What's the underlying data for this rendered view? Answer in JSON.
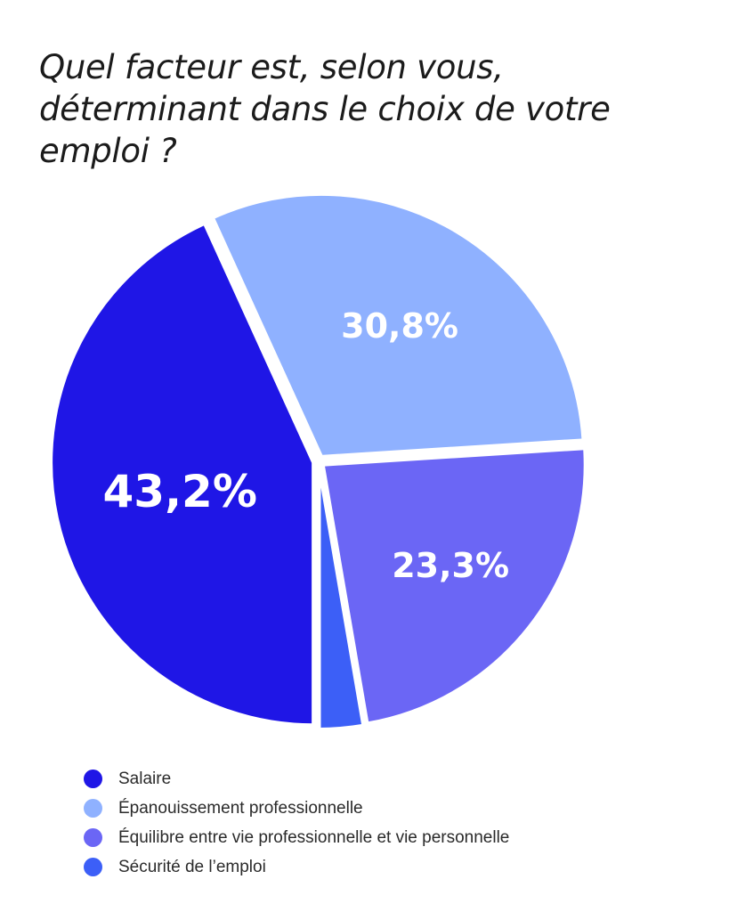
{
  "title": "Quel facteur est, selon vous, déterminant dans le choix de votre emploi ?",
  "chart_data": {
    "type": "pie",
    "title": "Quel facteur est, selon vous, déterminant dans le choix de votre emploi ?",
    "unit": "%",
    "legend_position": "bottom-left",
    "slices": [
      {
        "label": "Salaire",
        "value": 43.2,
        "display": "43,2%",
        "color": "#1f16e6"
      },
      {
        "label": "Épanouissement professionnelle",
        "value": 30.8,
        "display": "30,8%",
        "color": "#8fb1ff"
      },
      {
        "label": "Équilibre entre vie professionnelle et vie personnelle",
        "value": 23.3,
        "display": "23,3%",
        "color": "#6b66f5"
      },
      {
        "label": "Sécurité de l’emploi",
        "value": 2.7,
        "display": "",
        "color": "#3c5ff7"
      }
    ]
  }
}
